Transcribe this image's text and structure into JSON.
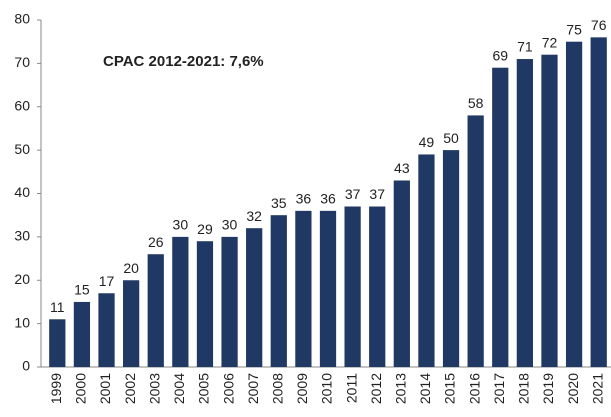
{
  "chart_data": {
    "type": "bar",
    "annotation": "CPAC 2012-2021: 7,6%",
    "categories": [
      "1999",
      "2000",
      "2001",
      "2002",
      "2003",
      "2004",
      "2005",
      "2006",
      "2007",
      "2008",
      "2009",
      "2010",
      "2011",
      "2012",
      "2013",
      "2014",
      "2015",
      "2016",
      "2017",
      "2018",
      "2019",
      "2020",
      "2021"
    ],
    "values": [
      11,
      15,
      17,
      20,
      26,
      30,
      29,
      30,
      32,
      35,
      36,
      36,
      37,
      37,
      43,
      49,
      50,
      58,
      69,
      71,
      72,
      75,
      76
    ],
    "color": "#203864",
    "ylim": [
      0,
      80
    ],
    "yticks": [
      0,
      10,
      20,
      30,
      40,
      50,
      60,
      70,
      80
    ],
    "grid": false
  }
}
